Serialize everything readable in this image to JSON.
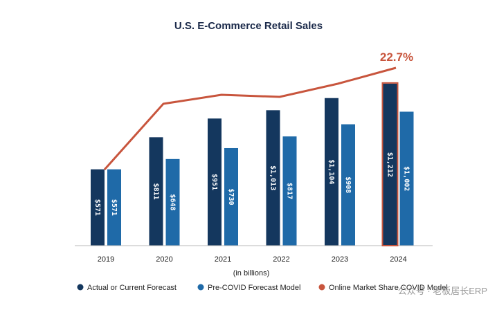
{
  "chart_data": {
    "type": "bar",
    "title": "U.S. E-Commerce Retail Sales",
    "xlabel": "(in billions)",
    "categories": [
      "2019",
      "2020",
      "2021",
      "2022",
      "2023",
      "2024"
    ],
    "series": [
      {
        "name": "Actual or Current Forecast",
        "color": "#14375e",
        "values": [
          571,
          811,
          951,
          1013,
          1104,
          1212
        ],
        "labels": [
          "$571",
          "$811",
          "$951",
          "$1,013",
          "$1,104",
          "$1,212"
        ]
      },
      {
        "name": "Pre-COVID Forecast Model",
        "color": "#1f6aa8",
        "values": [
          571,
          648,
          730,
          817,
          908,
          1002
        ],
        "labels": [
          "$571",
          "$648",
          "$730",
          "$817",
          "$908",
          "$1,002"
        ]
      }
    ],
    "line": {
      "name": "Online Market Share COVID Model",
      "color": "#c8553d",
      "final_label": "22.7%"
    },
    "highlight_category": "2024",
    "ylim": [
      0,
      1320
    ],
    "grid": false,
    "legend": "bottom"
  },
  "watermark": "公众号 · 老板居长ERP"
}
